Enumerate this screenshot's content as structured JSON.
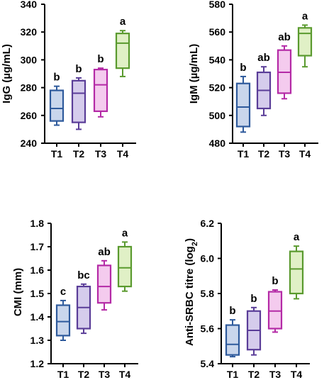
{
  "chart_data": [
    {
      "type": "box",
      "ylabel": "IgG (µg/mL)",
      "ylim": [
        240,
        340
      ],
      "yticks": [
        240,
        260,
        280,
        300,
        320,
        340
      ],
      "categories": [
        "T1",
        "T2",
        "T3",
        "T4"
      ],
      "boxes": [
        {
          "min": 253,
          "q1": 256,
          "median": 265,
          "q3": 278,
          "max": 281,
          "letter": "b"
        },
        {
          "min": 250,
          "q1": 255,
          "median": 276,
          "q3": 285,
          "max": 287,
          "letter": "b"
        },
        {
          "min": 259,
          "q1": 263,
          "median": 282,
          "q3": 293,
          "max": 294,
          "letter": "b"
        },
        {
          "min": 288,
          "q1": 294,
          "median": 312,
          "q3": 319,
          "max": 321,
          "letter": "a"
        }
      ]
    },
    {
      "type": "box",
      "ylabel": "IgM (µg/mL)",
      "ylim": [
        480,
        580
      ],
      "yticks": [
        480,
        500,
        520,
        540,
        560,
        580
      ],
      "categories": [
        "T1",
        "T2",
        "T3",
        "T4"
      ],
      "boxes": [
        {
          "min": 488,
          "q1": 492,
          "median": 506,
          "q3": 523,
          "max": 528,
          "letter": "b"
        },
        {
          "min": 500,
          "q1": 505,
          "median": 518,
          "q3": 531,
          "max": 535,
          "letter": "ab"
        },
        {
          "min": 512,
          "q1": 516,
          "median": 531,
          "q3": 547,
          "max": 550,
          "letter": "ab"
        },
        {
          "min": 535,
          "q1": 543,
          "median": 559,
          "q3": 563,
          "max": 565,
          "letter": "a"
        }
      ]
    },
    {
      "type": "box",
      "ylabel": "CMI (mm)",
      "ylim": [
        1.2,
        1.8
      ],
      "yticks": [
        "1.2",
        "1.3",
        "1.4",
        "1.5",
        "1.6",
        "1.7",
        "1.8"
      ],
      "categories": [
        "T1",
        "T2",
        "T3",
        "T4"
      ],
      "boxes": [
        {
          "min": 1.3,
          "q1": 1.32,
          "median": 1.38,
          "q3": 1.45,
          "max": 1.47,
          "letter": "c"
        },
        {
          "min": 1.33,
          "q1": 1.35,
          "median": 1.44,
          "q3": 1.53,
          "max": 1.54,
          "letter": "bc"
        },
        {
          "min": 1.43,
          "q1": 1.46,
          "median": 1.53,
          "q3": 1.62,
          "max": 1.64,
          "letter": "ab"
        },
        {
          "min": 1.51,
          "q1": 1.53,
          "median": 1.61,
          "q3": 1.7,
          "max": 1.72,
          "letter": "a"
        }
      ]
    },
    {
      "type": "box",
      "ylabel": "Anti-SRBC titre (log",
      "ylabel_sub": "2",
      "ylabel_end": ")",
      "ylim": [
        5.4,
        6.2
      ],
      "yticks": [
        "5.4",
        "5.6",
        "5.8",
        "6.0",
        "6.2"
      ],
      "categories": [
        "T1",
        "T2",
        "T3",
        "T4"
      ],
      "boxes": [
        {
          "min": 5.44,
          "q1": 5.45,
          "median": 5.51,
          "q3": 5.62,
          "max": 5.65,
          "letter": "b"
        },
        {
          "min": 5.45,
          "q1": 5.48,
          "median": 5.59,
          "q3": 5.7,
          "max": 5.72,
          "letter": "b"
        },
        {
          "min": 5.58,
          "q1": 5.6,
          "median": 5.7,
          "q3": 5.81,
          "max": 5.82,
          "letter": "b"
        },
        {
          "min": 5.77,
          "q1": 5.8,
          "median": 5.94,
          "q3": 6.04,
          "max": 6.07,
          "letter": "a"
        }
      ]
    }
  ],
  "colors": {
    "T1": {
      "stroke": "#2e5a9c",
      "fill": "#c9d6ec"
    },
    "T2": {
      "stroke": "#5a3d98",
      "fill": "#d5ccec"
    },
    "T3": {
      "stroke": "#b42aa6",
      "fill": "#f4cbee"
    },
    "T4": {
      "stroke": "#5a9a2e",
      "fill": "#e0f0c6"
    }
  }
}
